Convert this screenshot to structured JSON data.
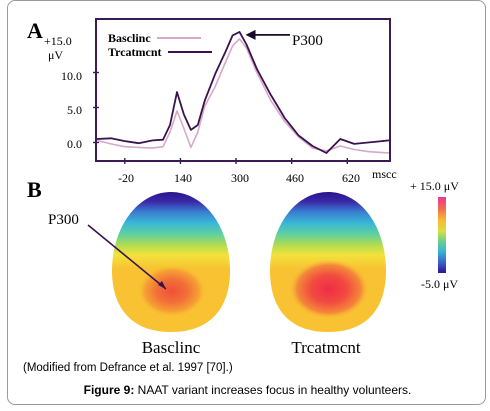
{
  "figure": {
    "panel_a_letter": "A",
    "panel_b_letter": "B",
    "source_note": "(Modified from Defrance et al. 1997 [70].)",
    "caption_label": "Figure 9:",
    "caption_text": " NAAT variant increases focus in healthy volunteers."
  },
  "chart_data": [
    {
      "type": "line",
      "y_axis_top_label": "+15.0",
      "y_unit": "μV",
      "y_ticks": [
        "10.0",
        "5.0",
        "0.0"
      ],
      "x_ticks": [
        "-20",
        "140",
        "300",
        "460",
        "620"
      ],
      "x_unit": "mscc",
      "xlim": [
        -100,
        740
      ],
      "ylim": [
        -2.5,
        17.5
      ],
      "legend": [
        "Basclinc",
        "Trcatmcnt"
      ],
      "annotation": "P300",
      "series": [
        {
          "name": "Basclinc",
          "color": "#d8a8c8",
          "x": [
            -100,
            -60,
            -20,
            20,
            60,
            90,
            110,
            130,
            150,
            170,
            190,
            210,
            240,
            270,
            290,
            310,
            330,
            360,
            400,
            440,
            480,
            520,
            560,
            600,
            640,
            680,
            740
          ],
          "y": [
            0.3,
            -0.2,
            -0.6,
            -0.7,
            -0.8,
            -0.6,
            1.5,
            4.5,
            2.0,
            -0.7,
            1.5,
            5.2,
            8.0,
            11.5,
            13.8,
            14.8,
            13.5,
            10.0,
            6.0,
            3.0,
            0.8,
            -0.8,
            -1.2,
            -0.5,
            -1.0,
            -1.3,
            -1.5
          ]
        },
        {
          "name": "Trcatmcnt",
          "color": "#3a1250",
          "x": [
            -100,
            -60,
            -20,
            20,
            60,
            90,
            110,
            130,
            150,
            170,
            190,
            210,
            240,
            270,
            290,
            310,
            330,
            360,
            400,
            440,
            480,
            520,
            560,
            600,
            640,
            680,
            740
          ],
          "y": [
            0.5,
            0.6,
            0.2,
            -0.1,
            0.3,
            0.4,
            2.5,
            7.2,
            4.0,
            1.8,
            2.5,
            6.0,
            9.8,
            13.0,
            15.3,
            15.8,
            14.0,
            10.5,
            6.8,
            3.5,
            1.0,
            -0.5,
            -1.5,
            0.5,
            -0.2,
            0.0,
            0.3
          ]
        }
      ]
    },
    {
      "type": "heatmap",
      "colorbar_max_label": "+ 15.0  μV",
      "colorbar_min_label": "-5.0  μV",
      "annotation": "P300",
      "maps": [
        {
          "name": "Basclinc",
          "peak_intensity": 0.82
        },
        {
          "name": "Trcatmcnt",
          "peak_intensity": 0.94
        }
      ]
    }
  ]
}
